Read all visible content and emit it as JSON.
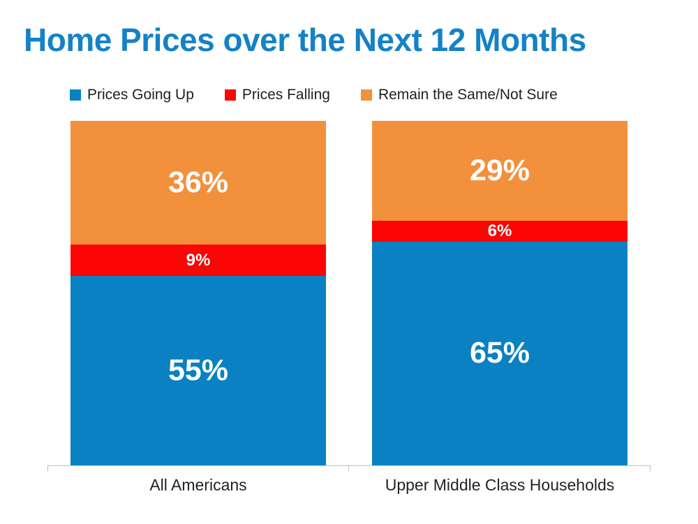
{
  "title": "Home Prices over the Next 12 Months",
  "colors": {
    "title": "#1482C6",
    "axis": "#BFBFBF",
    "legend_text": "#1F1F1F",
    "bar_value_label": "#FFFFFF",
    "blue": "#0981C3",
    "red": "#FB0505",
    "orange": "#F3903C"
  },
  "chart_data": {
    "type": "bar",
    "subtype": "stacked-vertical",
    "title": "Home Prices over the Next 12 Months",
    "categories": [
      "All Americans",
      "Upper Middle Class Households"
    ],
    "series": [
      {
        "name": "Prices Going Up",
        "color": "#0981C3",
        "values": [
          55,
          65
        ]
      },
      {
        "name": "Prices Falling",
        "color": "#FB0505",
        "values": [
          9,
          6
        ]
      },
      {
        "name": "Remain the Same/Not Sure",
        "color": "#F3903C",
        "values": [
          36,
          29
        ]
      }
    ],
    "stack_order_top_to_bottom": [
      2,
      1,
      0
    ],
    "value_suffix": "%",
    "data_labels": [
      {
        "category": "All Americans",
        "Prices Going Up": "55%",
        "Prices Falling": "9%",
        "Remain the Same/Not Sure": "36%"
      },
      {
        "category": "Upper Middle Class Households",
        "Prices Going Up": "65%",
        "Prices Falling": "6%",
        "Remain the Same/Not Sure": "29%"
      }
    ],
    "ylim": [
      0,
      100
    ],
    "grid": false,
    "legend_position": "top",
    "xlabel": "",
    "ylabel": ""
  }
}
